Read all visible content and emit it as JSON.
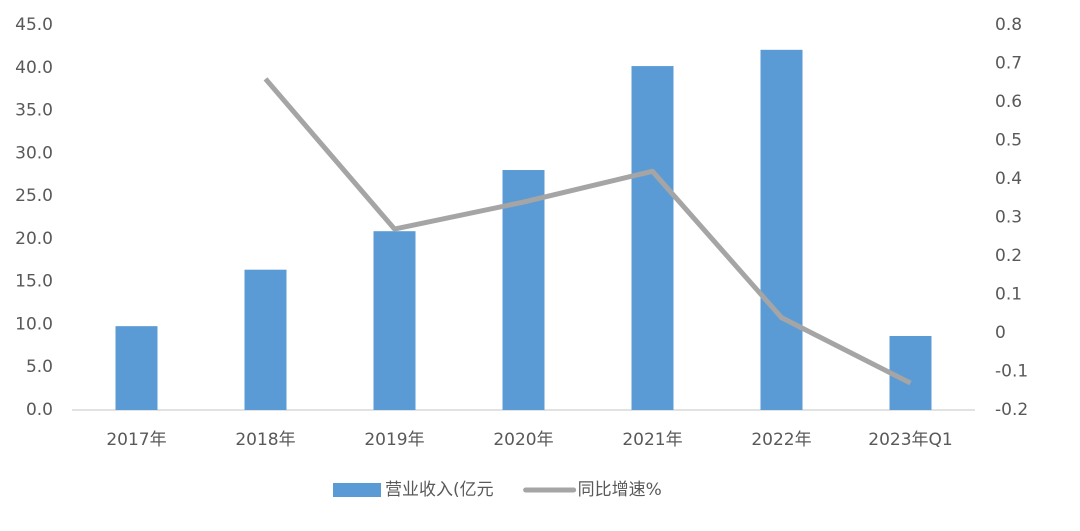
{
  "chart_data": {
    "type": "bar",
    "categories": [
      "2017年",
      "2018年",
      "2019年",
      "2020年",
      "2021年",
      "2022年",
      "2023年Q1"
    ],
    "series": [
      {
        "name": "营业收入(亿元",
        "type": "bar",
        "color": "#5b9bd5",
        "values": [
          9.8,
          16.4,
          20.9,
          28.05,
          40.2,
          42.1,
          8.65
        ]
      },
      {
        "name": "同比增速%",
        "type": "line",
        "axis": "y2",
        "color": "#a5a5a5",
        "values": [
          null,
          0.66,
          0.27,
          0.34,
          0.42,
          0.04,
          -0.13
        ]
      }
    ],
    "ylim": [
      0,
      45
    ],
    "yticks": [
      {
        "value": 0,
        "label": "0.0"
      },
      {
        "value": 5,
        "label": "5.0"
      },
      {
        "value": 10,
        "label": "10.0"
      },
      {
        "value": 15,
        "label": "15.0"
      },
      {
        "value": 20,
        "label": "20.0"
      },
      {
        "value": 25,
        "label": "25.0"
      },
      {
        "value": 30,
        "label": "30.0"
      },
      {
        "value": 35,
        "label": "35.0"
      },
      {
        "value": 40,
        "label": "40.0"
      },
      {
        "value": 45,
        "label": "45.0"
      }
    ],
    "y2lim": [
      -0.2,
      0.8
    ],
    "y2ticks": [
      -0.2,
      -0.1,
      0,
      0.1,
      0.2,
      0.3,
      0.4,
      0.5,
      0.6,
      0.7,
      0.8
    ],
    "grid": false,
    "legend": "bottom"
  }
}
